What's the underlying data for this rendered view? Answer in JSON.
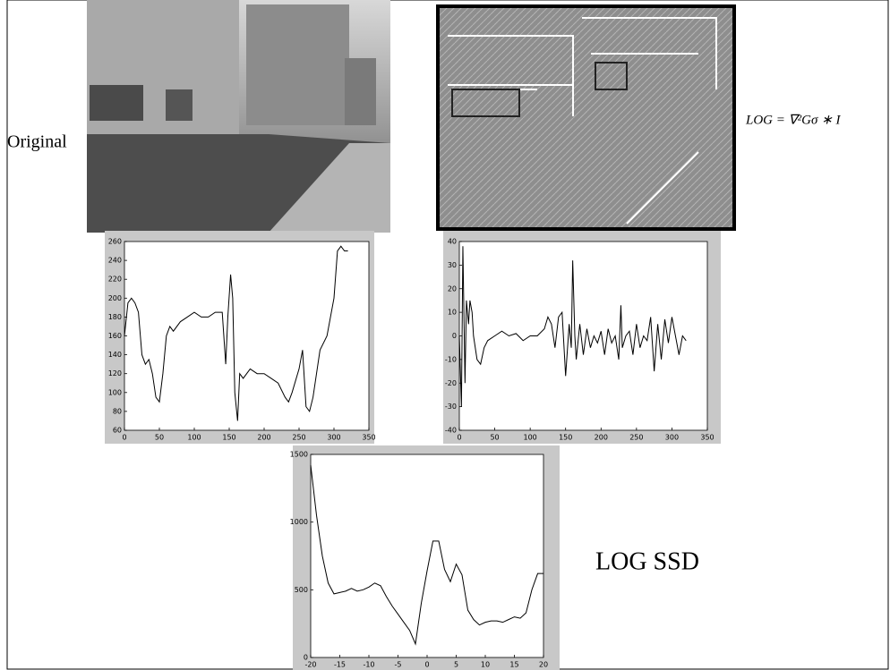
{
  "labels": {
    "original": "Original",
    "formula": "LOG = ∇²Gσ ∗ I",
    "caption": "LOG SSD"
  },
  "chart_data": [
    {
      "type": "line",
      "color": "#000000",
      "x": [
        0,
        5,
        10,
        15,
        20,
        25,
        30,
        35,
        40,
        45,
        50,
        55,
        60,
        65,
        70,
        80,
        90,
        100,
        110,
        120,
        130,
        140,
        145,
        148,
        152,
        155,
        158,
        162,
        165,
        170,
        180,
        190,
        200,
        210,
        220,
        230,
        235,
        240,
        250,
        255,
        260,
        265,
        270,
        275,
        280,
        290,
        300,
        305,
        310,
        315,
        320
      ],
      "values": [
        160,
        195,
        200,
        195,
        185,
        140,
        130,
        135,
        120,
        95,
        90,
        120,
        160,
        170,
        165,
        175,
        180,
        185,
        180,
        180,
        185,
        185,
        130,
        180,
        225,
        200,
        100,
        70,
        120,
        115,
        125,
        120,
        120,
        115,
        110,
        95,
        90,
        100,
        125,
        145,
        85,
        80,
        95,
        120,
        145,
        160,
        200,
        250,
        255,
        250,
        250
      ],
      "xlim": [
        0,
        350
      ],
      "xticks": [
        0,
        50,
        100,
        150,
        200,
        250,
        300,
        350
      ],
      "ylim": [
        60,
        260
      ],
      "yticks": [
        60,
        80,
        100,
        120,
        140,
        160,
        180,
        200,
        220,
        240,
        260
      ]
    },
    {
      "type": "line",
      "color": "#000000",
      "x": [
        0,
        3,
        5,
        8,
        10,
        13,
        15,
        18,
        20,
        25,
        30,
        35,
        40,
        50,
        60,
        70,
        80,
        90,
        100,
        110,
        120,
        125,
        130,
        135,
        140,
        145,
        150,
        155,
        158,
        160,
        163,
        165,
        170,
        175,
        180,
        185,
        190,
        195,
        200,
        205,
        210,
        215,
        220,
        225,
        228,
        230,
        235,
        240,
        245,
        250,
        255,
        260,
        265,
        270,
        275,
        280,
        285,
        290,
        295,
        300,
        305,
        310,
        315,
        320
      ],
      "values": [
        0,
        -30,
        38,
        -20,
        15,
        5,
        15,
        10,
        0,
        -10,
        -12,
        -5,
        -2,
        0,
        2,
        0,
        1,
        -2,
        0,
        0,
        3,
        8,
        5,
        -5,
        8,
        10,
        -17,
        5,
        -5,
        32,
        0,
        -10,
        5,
        -8,
        3,
        -5,
        0,
        -3,
        2,
        -8,
        3,
        -3,
        0,
        -10,
        13,
        -5,
        0,
        2,
        -8,
        5,
        -5,
        0,
        -2,
        8,
        -15,
        5,
        -10,
        7,
        -3,
        8,
        0,
        -8,
        0,
        -2
      ],
      "xlim": [
        0,
        350
      ],
      "xticks": [
        0,
        50,
        100,
        150,
        200,
        250,
        300,
        350
      ],
      "ylim": [
        -40,
        40
      ],
      "yticks": [
        -40,
        -30,
        -20,
        -10,
        0,
        10,
        20,
        30,
        40
      ]
    },
    {
      "type": "line",
      "color": "#000000",
      "x": [
        -20,
        -19,
        -18,
        -17,
        -16,
        -15,
        -14,
        -13,
        -12,
        -11,
        -10,
        -9,
        -8,
        -7,
        -6,
        -5,
        -4,
        -3,
        -2,
        -1,
        0,
        1,
        2,
        3,
        4,
        5,
        6,
        7,
        8,
        9,
        10,
        11,
        12,
        13,
        14,
        15,
        16,
        17,
        18,
        19,
        20
      ],
      "values": [
        1420,
        1050,
        750,
        550,
        470,
        480,
        490,
        510,
        490,
        500,
        520,
        550,
        530,
        450,
        380,
        320,
        260,
        200,
        100,
        400,
        640,
        860,
        860,
        650,
        560,
        690,
        610,
        350,
        280,
        240,
        260,
        270,
        270,
        260,
        280,
        300,
        290,
        330,
        500,
        620,
        620
      ],
      "xlim": [
        -20,
        20
      ],
      "xticks": [
        -20,
        -15,
        -10,
        -5,
        0,
        5,
        10,
        15,
        20
      ],
      "ylim": [
        0,
        1500
      ],
      "yticks": [
        0,
        500,
        1000,
        1500
      ]
    }
  ]
}
